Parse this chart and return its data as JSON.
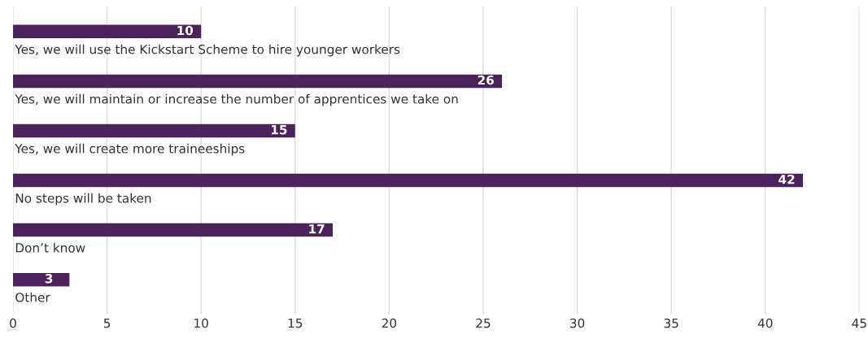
{
  "chart_data": {
    "type": "bar",
    "orientation": "horizontal",
    "categories": [
      "Yes, we will use the Kickstart Scheme to hire younger workers",
      "Yes, we will maintain or increase the number of apprentices we take on",
      "Yes, we will create more traineeships",
      "No steps will be taken",
      "Don’t know",
      "Other"
    ],
    "values": [
      10,
      26,
      15,
      42,
      17,
      3
    ],
    "color": "#4b2259",
    "data_labels": true,
    "xlim": [
      0,
      45
    ],
    "xticks": [
      0,
      5,
      10,
      15,
      20,
      25,
      30,
      35,
      40,
      45
    ],
    "grid": "x",
    "tick_labels": "x",
    "legend": false
  }
}
